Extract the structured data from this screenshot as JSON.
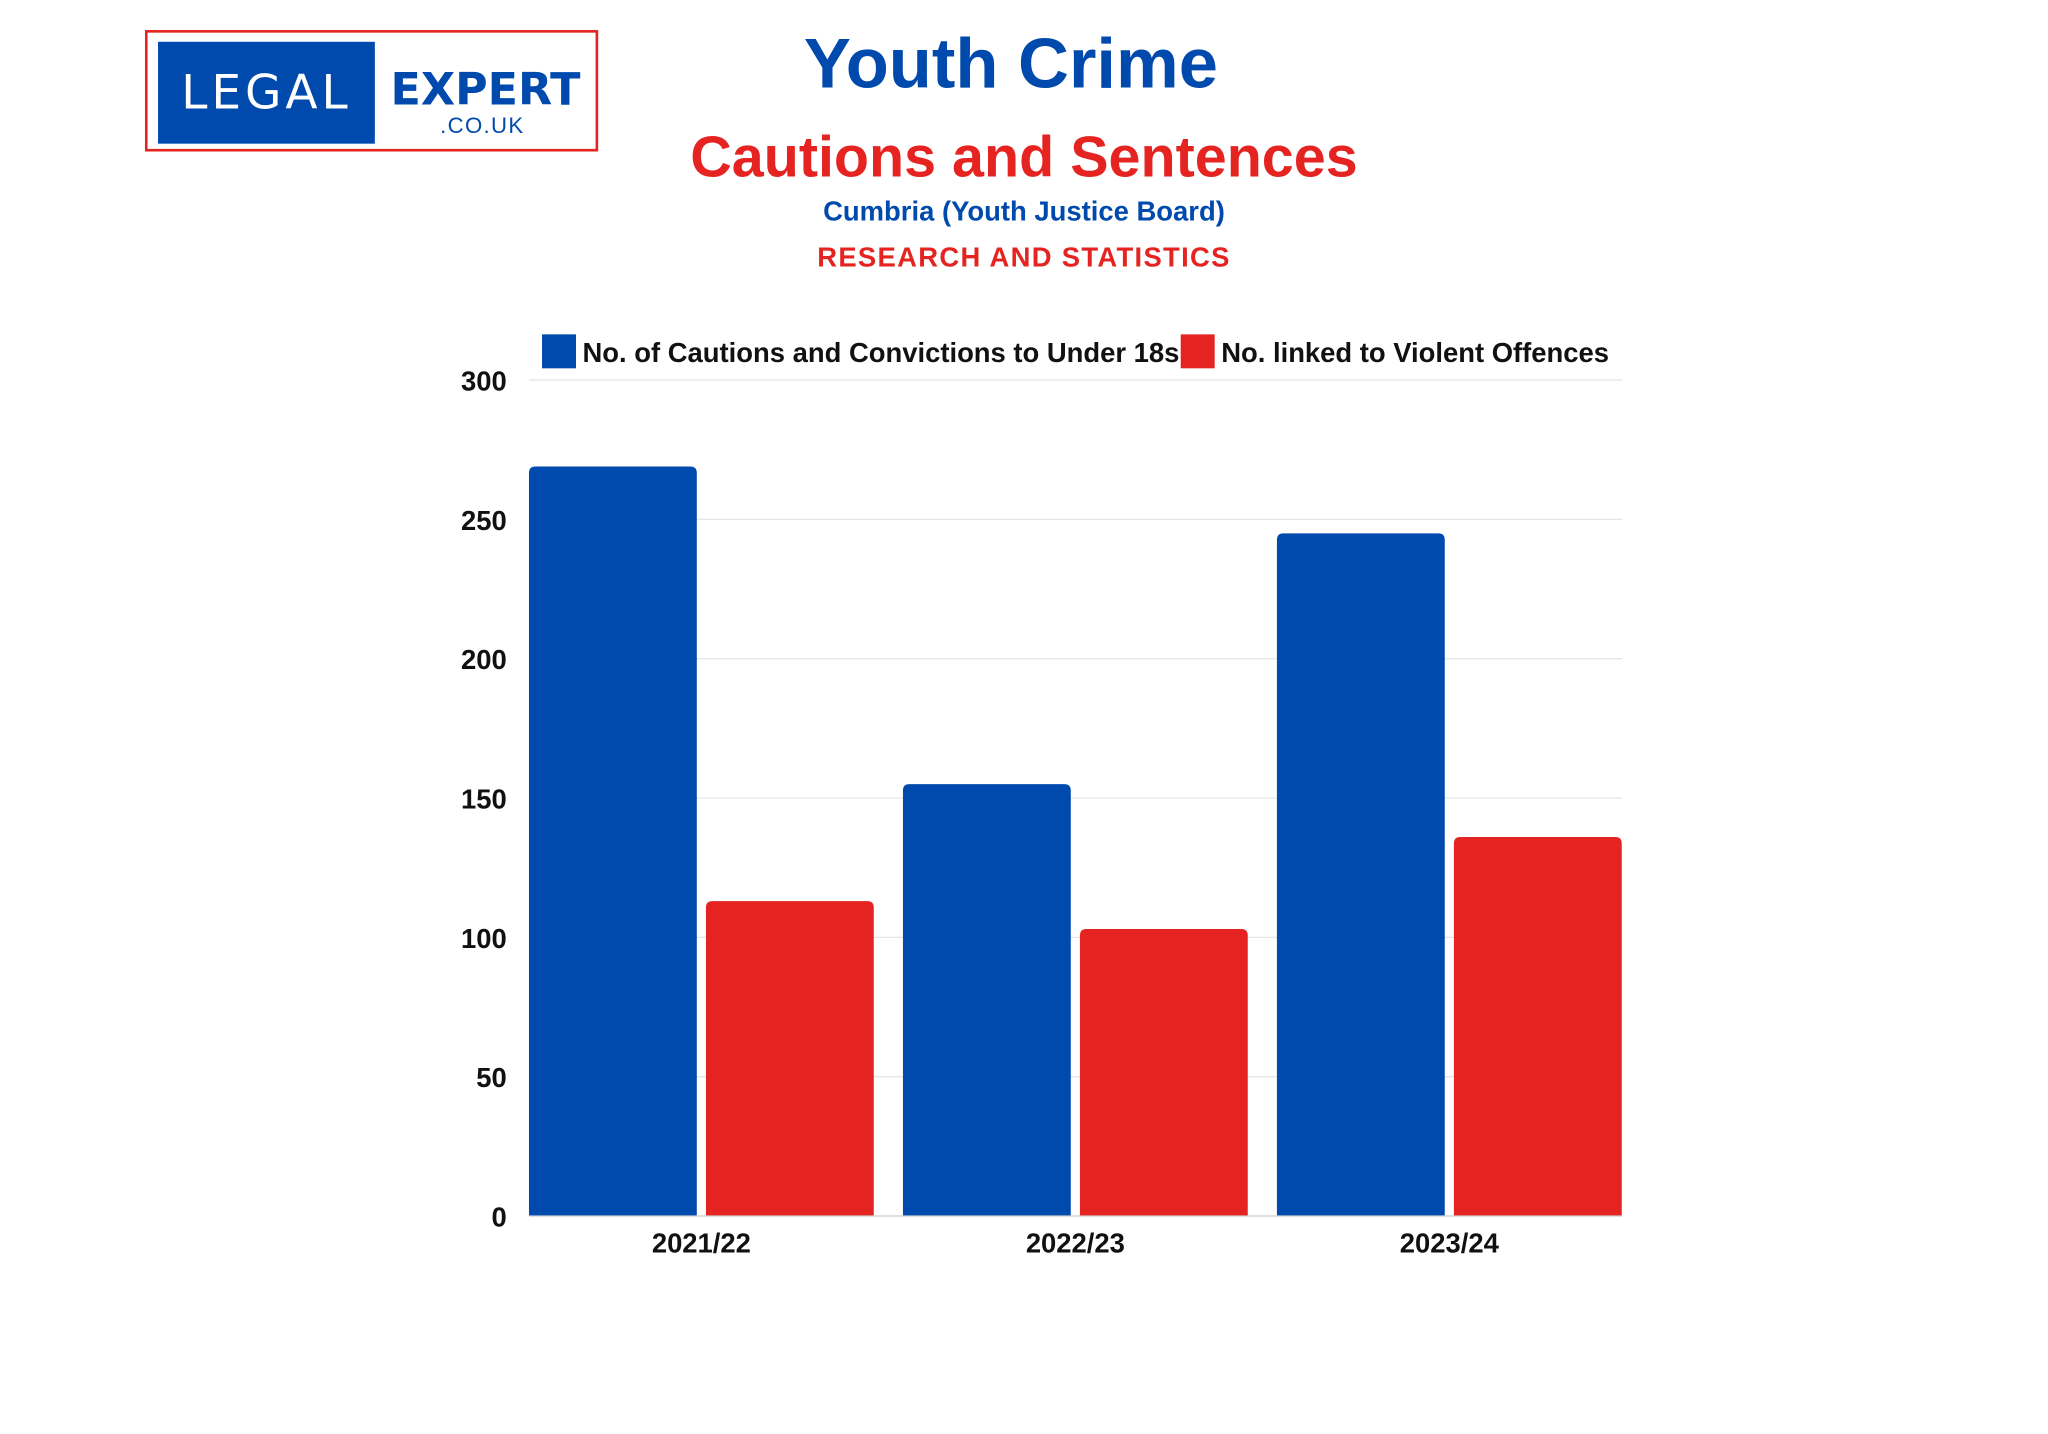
{
  "logo": {
    "word1": "LEGAL",
    "word2": "EXPERT",
    "domain": ".CO.UK"
  },
  "header": {
    "title": "Youth Crime",
    "subtitle": "Cautions and Sentences",
    "source": "Cumbria (Youth Justice Board)",
    "tagline": "RESEARCH AND STATISTICS"
  },
  "chart_data": {
    "type": "bar",
    "categories": [
      "2021/22",
      "2022/23",
      "2023/24"
    ],
    "series": [
      {
        "name": "No. of Cautions and Convictions to Under 18s",
        "color": "#004aad",
        "values": [
          269,
          155,
          245
        ]
      },
      {
        "name": "No. linked to Violent Offences",
        "color": "#e52421",
        "values": [
          113,
          103,
          136
        ]
      }
    ],
    "ylim": [
      0,
      300
    ],
    "yticks": [
      0,
      50,
      100,
      150,
      200,
      250,
      300
    ],
    "grid": true,
    "legend": "top"
  }
}
